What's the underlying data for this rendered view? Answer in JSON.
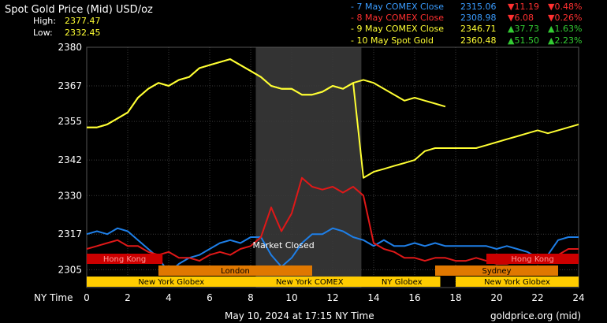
{
  "header": {
    "title": "Spot Gold Price (Mid) USD/oz",
    "high_label": "High:",
    "high_value": "2377.47",
    "low_label": "Low:",
    "low_value": "2332.45"
  },
  "legend": [
    {
      "label": "- 7 May COMEX Close",
      "price": "2315.06",
      "change": "▼11.19",
      "pct": "▼0.48%",
      "color": "#3a9cff",
      "dir": "down"
    },
    {
      "label": "- 8 May COMEX Close",
      "price": "2308.98",
      "change": "▼6.08",
      "pct": "▼0.26%",
      "color": "#ff3030",
      "dir": "down"
    },
    {
      "label": "- 9 May COMEX Close",
      "price": "2346.71",
      "change": "▲37.73",
      "pct": "▲1.63%",
      "color": "#ffff33",
      "dir": "up"
    },
    {
      "label": "- 10 May Spot Gold",
      "price": "2360.48",
      "change": "▲51.50",
      "pct": "▲2.23%",
      "color": "#ffff33",
      "dir": "up"
    }
  ],
  "colors": {
    "price_text": "#3a9cff",
    "down": "#ff3030",
    "up": "#33cc33",
    "series_blue": "#1e7fe8",
    "series_red": "#e01818",
    "series_yellow": "#ffff33",
    "shade": "#333333"
  },
  "sessions": [
    {
      "name": "Hong Kong",
      "start": 0,
      "end": 3.7,
      "color": "#cc0000",
      "text_color": "#ff9999",
      "row": 0
    },
    {
      "name": "Hong Kong",
      "start": 19.5,
      "end": 24,
      "color": "#cc0000",
      "text_color": "#ff9999",
      "row": 0
    },
    {
      "name": "London",
      "start": 3.5,
      "end": 11,
      "color": "#e07800",
      "text_color": "#000000",
      "row": 1
    },
    {
      "name": "Sydney",
      "start": 17,
      "end": 23,
      "color": "#e07800",
      "text_color": "#000000",
      "row": 1
    },
    {
      "name": "New York Globex",
      "start": 0,
      "end": 8.25,
      "color": "#ffcc00",
      "text_color": "#000000",
      "row": 2
    },
    {
      "name": "New York COMEX",
      "start": 8.25,
      "end": 13.5,
      "color": "#ffcc00",
      "text_color": "#000000",
      "row": 2
    },
    {
      "name": "NY Globex",
      "start": 13.5,
      "end": 17.25,
      "color": "#ffcc00",
      "text_color": "#000000",
      "row": 2
    },
    {
      "name": "New York Globex",
      "start": 18,
      "end": 24,
      "color": "#ffcc00",
      "text_color": "#000000",
      "row": 2
    }
  ],
  "market_closed_label": "Market Closed",
  "footer": {
    "timestamp": "May 10, 2024 at 17:15 NY Time",
    "source": "goldprice.org (mid)"
  },
  "chart_data": {
    "type": "line",
    "xlabel": "NY Time",
    "ylabel": "",
    "xlim": [
      0,
      24
    ],
    "ylim": [
      2299,
      2380
    ],
    "x_ticks": [
      0,
      2,
      4,
      6,
      8,
      10,
      12,
      14,
      16,
      18,
      20,
      22,
      24
    ],
    "y_ticks": [
      2380,
      2367,
      2355,
      2342,
      2330,
      2317,
      2305
    ],
    "grid": true,
    "shaded_region": [
      8.25,
      13.4
    ],
    "market_closed_at": 9.6,
    "series": [
      {
        "name": "7 May COMEX Close",
        "color": "#1e7fe8",
        "x": [
          0,
          0.5,
          1,
          1.5,
          2,
          2.5,
          3,
          3.5,
          4,
          4.5,
          5,
          5.5,
          6,
          6.5,
          7,
          7.5,
          8,
          8.5,
          9,
          9.5,
          10,
          10.5,
          11,
          11.5,
          12,
          12.5,
          13,
          13.5,
          14,
          14.5,
          15,
          15.5,
          16,
          16.5,
          17,
          17.5,
          18,
          18.5,
          19,
          19.5,
          20,
          20.5,
          21,
          21.5,
          22,
          22.5,
          23,
          23.5,
          24
        ],
        "y": [
          2317,
          2318,
          2317,
          2319,
          2318,
          2315,
          2312,
          2309,
          2304,
          2307,
          2309,
          2310,
          2312,
          2314,
          2315,
          2314,
          2316,
          2316,
          2310,
          2306,
          2309,
          2314,
          2317,
          2317,
          2319,
          2318,
          2316,
          2315,
          2313,
          2315,
          2313,
          2313,
          2314,
          2313,
          2314,
          2313,
          2313,
          2313,
          2313,
          2313,
          2312,
          2313,
          2312,
          2311,
          2309,
          2310,
          2315,
          2316,
          2316
        ]
      },
      {
        "name": "8 May COMEX Close",
        "color": "#e01818",
        "x": [
          0,
          0.5,
          1,
          1.5,
          2,
          2.5,
          3,
          3.5,
          4,
          4.5,
          5,
          5.5,
          6,
          6.5,
          7,
          7.5,
          8,
          8.5,
          9,
          9.5,
          10,
          10.5,
          11,
          11.5,
          12,
          12.5,
          13,
          13.5,
          14,
          14.5,
          15,
          15.5,
          16,
          16.5,
          17,
          17.5,
          18,
          18.5,
          19,
          19.5,
          20,
          20.5,
          21,
          21.5,
          22,
          22.5,
          23,
          23.5,
          24
        ],
        "y": [
          2312,
          2313,
          2314,
          2315,
          2313,
          2313,
          2311,
          2310,
          2311,
          2309,
          2309,
          2308,
          2310,
          2311,
          2310,
          2312,
          2313,
          2316,
          2326,
          2318,
          2324,
          2336,
          2333,
          2332,
          2333,
          2331,
          2333,
          2330,
          2314,
          2312,
          2311,
          2309,
          2309,
          2308,
          2309,
          2309,
          2308,
          2308,
          2309,
          2308,
          2307,
          2307,
          2308,
          2309,
          2308,
          2309,
          2310,
          2312,
          2312
        ]
      },
      {
        "name": "9 May COMEX Close",
        "color": "#ffff33",
        "x": [
          0,
          0.5,
          1,
          1.5,
          2,
          2.5,
          3,
          3.5,
          4,
          4.5,
          5,
          5.5,
          6,
          6.5,
          7,
          7.5,
          8,
          8.5,
          9,
          9.5,
          10,
          10.5,
          11,
          11.5,
          12,
          12.5,
          13,
          13.5,
          14,
          14.5,
          15,
          15.5,
          16,
          16.5,
          17,
          17.5,
          18,
          18.5,
          19,
          19.5,
          20,
          20.5,
          21,
          21.5,
          22,
          22.5,
          23,
          23.5,
          24
        ],
        "y": [
          2353,
          2353,
          2354,
          2356,
          2358,
          2363,
          2366,
          2368,
          2367,
          2369,
          2370,
          2373,
          2374,
          2375,
          2376,
          2374,
          2372,
          2370,
          2367,
          2366,
          2366,
          2364,
          2364,
          2365,
          2367,
          2366,
          2368,
          2336,
          2338,
          2339,
          2340,
          2341,
          2342,
          2345,
          2346,
          2346,
          2346,
          2346,
          2346,
          2347,
          2348,
          2349,
          2350,
          2351,
          2352,
          2351,
          2352,
          2353,
          2354
        ]
      },
      {
        "name": "10 May Spot Gold",
        "color": "#ffff33",
        "x": [
          0,
          0.5,
          1,
          1.5,
          2,
          2.5,
          3,
          3.5,
          4,
          4.5,
          5,
          5.5,
          6,
          6.5,
          7,
          7.5,
          8,
          8.5,
          9,
          9.5,
          10,
          10.5,
          11,
          11.5,
          12,
          12.5,
          13,
          13.5,
          14,
          14.5,
          15,
          15.5,
          16,
          16.5,
          17,
          17.5
        ],
        "y": [
          2353,
          2353,
          2354,
          2356,
          2358,
          2363,
          2366,
          2368,
          2367,
          2369,
          2370,
          2373,
          2374,
          2375,
          2376,
          2374,
          2372,
          2370,
          2367,
          2366,
          2366,
          2364,
          2364,
          2365,
          2367,
          2366,
          2368,
          2369,
          2368,
          2366,
          2364,
          2362,
          2363,
          2362,
          2361,
          2360
        ]
      }
    ]
  }
}
